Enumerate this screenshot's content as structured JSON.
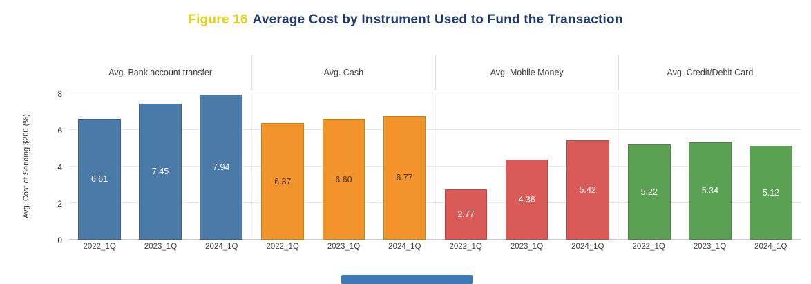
{
  "title": {
    "prefix": "Figure 16",
    "main": "Average Cost by Instrument Used to Fund the Transaction"
  },
  "colors": {
    "title_prefix": "#e4d215",
    "title_main": "#1f3a6e",
    "scroll_thumb": "#3e78b5"
  },
  "chart_data": {
    "type": "bar",
    "title": "Figure 16 Average Cost by Instrument Used to Fund the Transaction",
    "xlabel": "",
    "ylabel": "Avg. Cost of Sending $200 (%)",
    "ylim": [
      0,
      8
    ],
    "yticks": [
      0,
      2,
      4,
      6,
      8
    ],
    "grid": true,
    "legend": false,
    "categories": [
      "2022_1Q",
      "2023_1Q",
      "2024_1Q"
    ],
    "series": [
      {
        "name": "Avg. Bank account transfer",
        "values": [
          6.61,
          7.45,
          7.94
        ],
        "color": "#4b79a8",
        "border_color": "#3c6289",
        "value_label_color": "#ffffff"
      },
      {
        "name": "Avg. Cash",
        "values": [
          6.37,
          6.6,
          6.77
        ],
        "color": "#f3932c",
        "border_color": "#b98a13",
        "value_label_color": "#45310a"
      },
      {
        "name": "Avg. Mobile Money",
        "values": [
          2.77,
          4.36,
          5.42
        ],
        "color": "#da5a58",
        "border_color": "#b44a49",
        "value_label_color": "#ffffff"
      },
      {
        "name": "Avg. Credit/Debit Card",
        "values": [
          5.22,
          5.34,
          5.12
        ],
        "color": "#5ba153",
        "border_color": "#4a8544",
        "value_label_color": "#ffffff"
      }
    ]
  }
}
